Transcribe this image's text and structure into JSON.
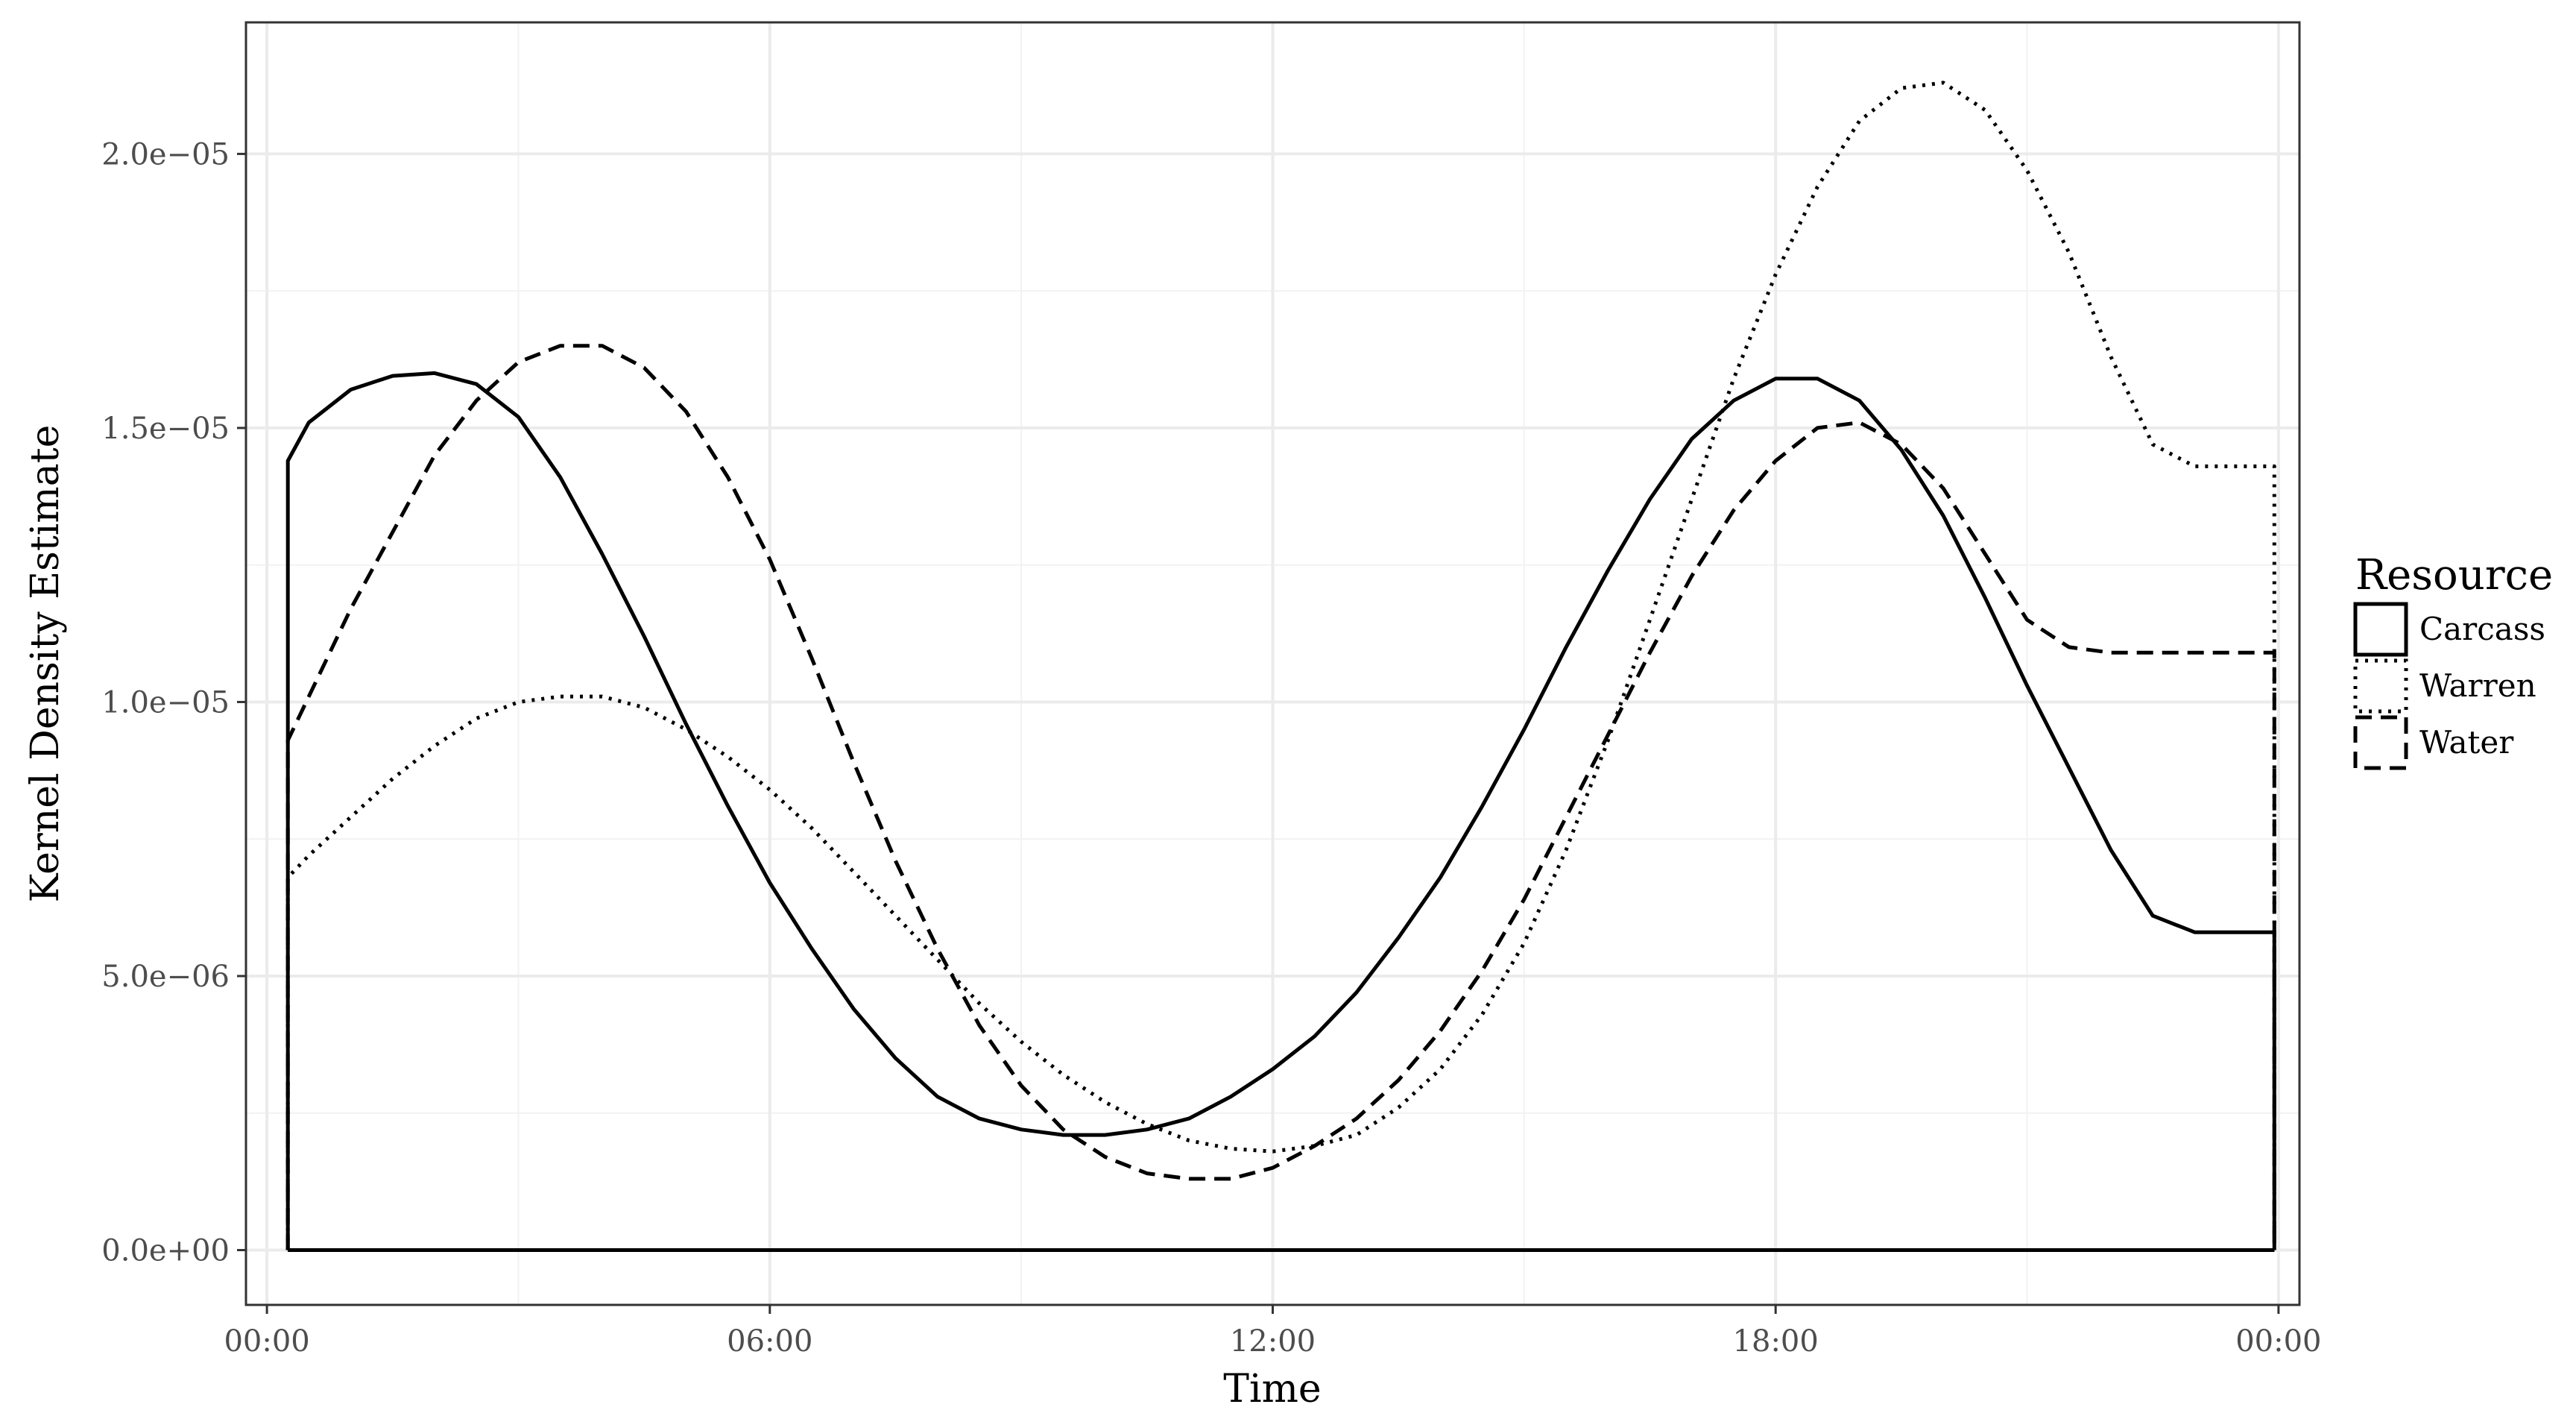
{
  "chart_data": {
    "type": "line",
    "xlabel": "Time",
    "ylabel": "Kernel Density Estimate",
    "xlim": [
      -0.25,
      24.25
    ],
    "ylim": [
      -1e-06,
      2.24e-05
    ],
    "xticks": [
      {
        "value": 0,
        "label": "00:00"
      },
      {
        "value": 6,
        "label": "06:00"
      },
      {
        "value": 12,
        "label": "12:00"
      },
      {
        "value": 18,
        "label": "18:00"
      },
      {
        "value": 24,
        "label": "00:00"
      }
    ],
    "yticks": [
      {
        "value": 0,
        "label": "0.0e+00"
      },
      {
        "value": 5e-06,
        "label": "5.0e−06"
      },
      {
        "value": 1e-05,
        "label": "1.0e−05"
      },
      {
        "value": 1.5e-05,
        "label": "1.5e−05"
      },
      {
        "value": 2e-05,
        "label": "2.0e−05"
      }
    ],
    "grid": true,
    "legend": {
      "title": "Resource",
      "position": "right"
    },
    "series": [
      {
        "name": "Carcass",
        "linetype": "solid",
        "x": [
          0.25,
          0.5,
          1.0,
          1.5,
          2.0,
          2.5,
          3.0,
          3.5,
          4.0,
          4.5,
          5.0,
          5.5,
          6.0,
          6.5,
          7.0,
          7.5,
          8.0,
          8.5,
          9.0,
          9.5,
          10.0,
          10.5,
          11.0,
          11.5,
          12.0,
          12.5,
          13.0,
          13.5,
          14.0,
          14.5,
          15.0,
          15.5,
          16.0,
          16.5,
          17.0,
          17.5,
          18.0,
          18.5,
          19.0,
          19.5,
          20.0,
          20.5,
          21.0,
          21.5,
          22.0,
          22.5,
          23.0,
          23.5,
          23.95
        ],
        "y": [
          1.44e-05,
          1.51e-05,
          1.57e-05,
          1.595e-05,
          1.6e-05,
          1.58e-05,
          1.52e-05,
          1.41e-05,
          1.27e-05,
          1.12e-05,
          9.6e-06,
          8.1e-06,
          6.7e-06,
          5.5e-06,
          4.4e-06,
          3.5e-06,
          2.8e-06,
          2.4e-06,
          2.2e-06,
          2.1e-06,
          2.1e-06,
          2.2e-06,
          2.4e-06,
          2.8e-06,
          3.3e-06,
          3.9e-06,
          4.7e-06,
          5.7e-06,
          6.8e-06,
          8.1e-06,
          9.5e-06,
          1.1e-05,
          1.24e-05,
          1.37e-05,
          1.48e-05,
          1.55e-05,
          1.59e-05,
          1.59e-05,
          1.55e-05,
          1.46e-05,
          1.34e-05,
          1.19e-05,
          1.03e-05,
          8.8e-06,
          7.3e-06,
          6.1e-06,
          5.8e-06,
          5.8e-06,
          5.8e-06
        ]
      },
      {
        "name": "Warren",
        "linetype": "dotted",
        "x": [
          0.25,
          0.5,
          1.0,
          1.5,
          2.0,
          2.5,
          3.0,
          3.5,
          4.0,
          4.5,
          5.0,
          5.5,
          6.0,
          6.5,
          7.0,
          7.5,
          8.0,
          8.5,
          9.0,
          9.5,
          10.0,
          10.5,
          11.0,
          11.5,
          12.0,
          12.5,
          13.0,
          13.5,
          14.0,
          14.5,
          15.0,
          15.5,
          16.0,
          16.5,
          17.0,
          17.5,
          18.0,
          18.5,
          19.0,
          19.5,
          20.0,
          20.5,
          21.0,
          21.5,
          22.0,
          22.5,
          23.0,
          23.5,
          23.95
        ],
        "y": [
          6.8e-06,
          7.2e-06,
          7.9e-06,
          8.6e-06,
          9.2e-06,
          9.7e-06,
          1e-05,
          1.01e-05,
          1.01e-05,
          9.9e-06,
          9.5e-06,
          9e-06,
          8.4e-06,
          7.7e-06,
          6.9e-06,
          6.1e-06,
          5.3e-06,
          4.5e-06,
          3.8e-06,
          3.2e-06,
          2.7e-06,
          2.3e-06,
          2e-06,
          1.85e-06,
          1.8e-06,
          1.9e-06,
          2.1e-06,
          2.6e-06,
          3.3e-06,
          4.3e-06,
          5.6e-06,
          7.3e-06,
          9.3e-06,
          1.15e-05,
          1.37e-05,
          1.59e-05,
          1.78e-05,
          1.94e-05,
          2.06e-05,
          2.12e-05,
          2.13e-05,
          2.08e-05,
          1.97e-05,
          1.82e-05,
          1.63e-05,
          1.47e-05,
          1.43e-05,
          1.43e-05,
          1.43e-05
        ]
      },
      {
        "name": "Water",
        "linetype": "dashed",
        "x": [
          0.25,
          0.5,
          1.0,
          1.5,
          2.0,
          2.5,
          3.0,
          3.5,
          4.0,
          4.5,
          5.0,
          5.5,
          6.0,
          6.5,
          7.0,
          7.5,
          8.0,
          8.5,
          9.0,
          9.5,
          10.0,
          10.5,
          11.0,
          11.5,
          12.0,
          12.5,
          13.0,
          13.5,
          14.0,
          14.5,
          15.0,
          15.5,
          16.0,
          16.5,
          17.0,
          17.5,
          18.0,
          18.5,
          19.0,
          19.5,
          20.0,
          20.5,
          21.0,
          21.5,
          22.0,
          22.5,
          23.0,
          23.5,
          23.95
        ],
        "y": [
          9.3e-06,
          1.01e-05,
          1.17e-05,
          1.31e-05,
          1.45e-05,
          1.55e-05,
          1.62e-05,
          1.65e-05,
          1.65e-05,
          1.61e-05,
          1.53e-05,
          1.41e-05,
          1.26e-05,
          1.08e-05,
          8.9e-06,
          7.1e-06,
          5.5e-06,
          4.1e-06,
          3e-06,
          2.2e-06,
          1.7e-06,
          1.4e-06,
          1.3e-06,
          1.3e-06,
          1.5e-06,
          1.9e-06,
          2.4e-06,
          3.1e-06,
          4e-06,
          5.1e-06,
          6.4e-06,
          7.9e-06,
          9.4e-06,
          1.09e-05,
          1.23e-05,
          1.35e-05,
          1.44e-05,
          1.5e-05,
          1.51e-05,
          1.47e-05,
          1.39e-05,
          1.27e-05,
          1.15e-05,
          1.1e-05,
          1.09e-05,
          1.09e-05,
          1.09e-05,
          1.09e-05,
          1.09e-05
        ]
      }
    ]
  }
}
